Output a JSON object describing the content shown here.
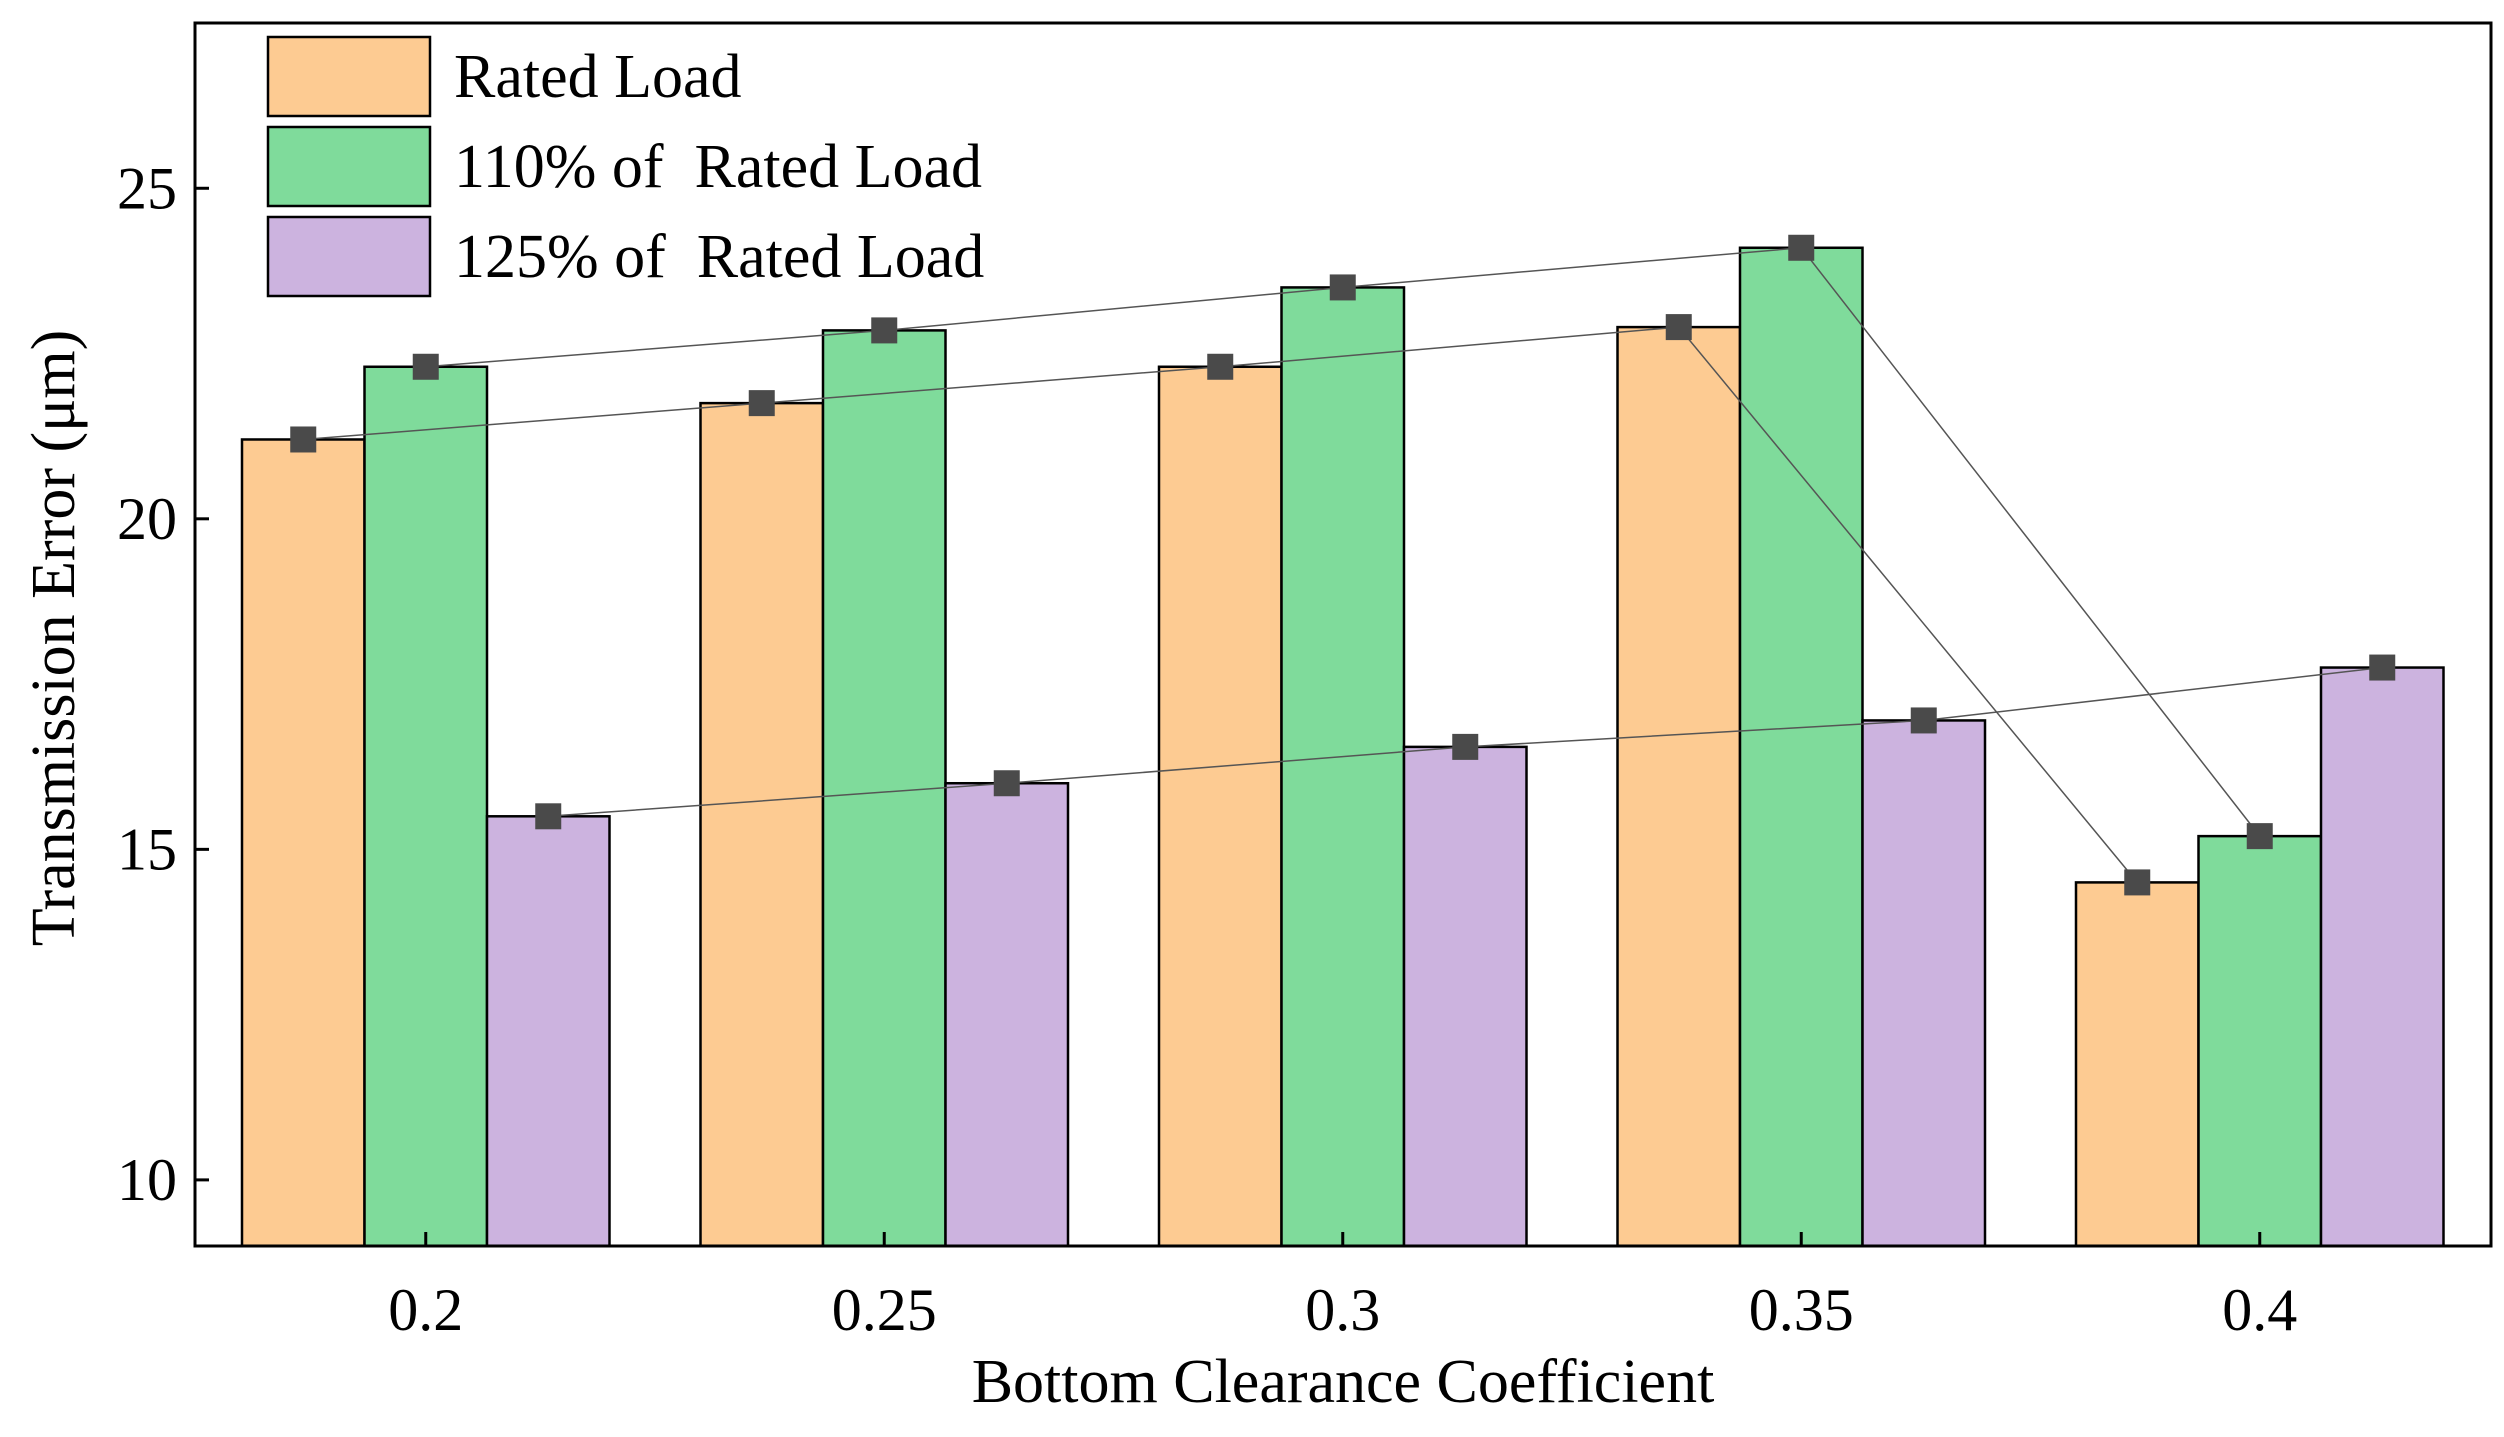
{
  "chart_data": {
    "type": "bar",
    "title": "",
    "xlabel": "Bottom Clearance Coefficient",
    "ylabel": "Transmission Error (μm)",
    "categories": [
      "0.2",
      "0.25",
      "0.3",
      "0.35",
      "0.4"
    ],
    "ylim": [
      9,
      27.5
    ],
    "yticks": [
      10,
      15,
      20,
      25
    ],
    "grid": false,
    "legend_position": "top-left",
    "series": [
      {
        "name": "Rated Load",
        "color": "#FDCB92",
        "values": [
          21.2,
          21.75,
          22.3,
          22.9,
          14.5
        ]
      },
      {
        "name": "110% of  Rated Load",
        "color": "#7FDB9B",
        "values": [
          22.3,
          22.85,
          23.5,
          24.1,
          15.2
        ]
      },
      {
        "name": "125% of  Rated Load",
        "color": "#CCB3DF",
        "values": [
          15.5,
          16.0,
          16.55,
          16.95,
          17.75
        ]
      }
    ],
    "marker_color": "#4A4A4A",
    "connector_color": "#555555"
  }
}
